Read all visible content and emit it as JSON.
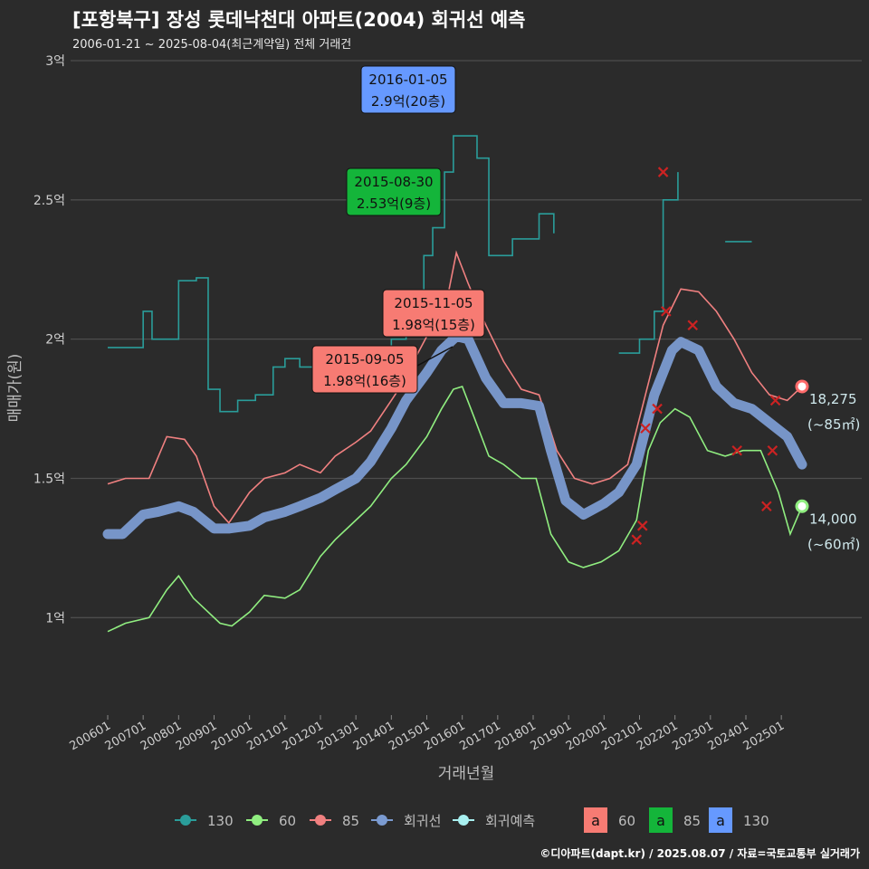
{
  "title": "[포항북구] 장성 롯데낙천대 아파트(2004) 회귀선 예측",
  "subtitle": "2006-01-21 ~ 2025-08-04(최근계약일) 전체 거래건",
  "footer": "©디아파트(dapt.kr) / 2025.08.07 / 자료=국토교통부 실거래가",
  "colors": {
    "background": "#2b2b2b",
    "grid": "#4d4d4d",
    "s130": "#2a9d9a",
    "s60": "#90ee80",
    "s85": "#f08080",
    "regression": "#7b9bd1",
    "forecast": "#a8f0f0",
    "box60": "#f77b73",
    "box85": "#14b53a",
    "box130": "#6699ff",
    "cancel": "#cc2222"
  },
  "chart_data": {
    "type": "line",
    "xlabel": "거래년월",
    "ylabel": "매매가(원)",
    "x_domain": [
      "2006-01",
      "2025-08"
    ],
    "ylim": [
      0.65,
      3.0
    ],
    "y_ticks": [
      {
        "value": 1.0,
        "label": "1억"
      },
      {
        "value": 1.5,
        "label": "1.5억"
      },
      {
        "value": 2.0,
        "label": "2억"
      },
      {
        "value": 2.5,
        "label": "2.5억"
      },
      {
        "value": 3.0,
        "label": "3억"
      }
    ],
    "x_ticks": [
      "200601",
      "200701",
      "200801",
      "200901",
      "201001",
      "201101",
      "201201",
      "201301",
      "201401",
      "201501",
      "201601",
      "201701",
      "201801",
      "201901",
      "202001",
      "202101",
      "202201",
      "202301",
      "202401",
      "202501"
    ],
    "series": [
      {
        "key": "s60",
        "name": "60",
        "style": "thin-line",
        "points": [
          [
            "2006-01",
            0.95
          ],
          [
            "2006-07",
            0.98
          ],
          [
            "2007-03",
            1.0
          ],
          [
            "2007-09",
            1.1
          ],
          [
            "2008-01",
            1.15
          ],
          [
            "2008-06",
            1.07
          ],
          [
            "2008-10",
            1.03
          ],
          [
            "2009-03",
            0.98
          ],
          [
            "2009-07",
            0.97
          ],
          [
            "2010-01",
            1.02
          ],
          [
            "2010-06",
            1.08
          ],
          [
            "2011-01",
            1.07
          ],
          [
            "2011-06",
            1.1
          ],
          [
            "2012-01",
            1.22
          ],
          [
            "2012-06",
            1.28
          ],
          [
            "2013-01",
            1.35
          ],
          [
            "2013-06",
            1.4
          ],
          [
            "2014-01",
            1.5
          ],
          [
            "2014-06",
            1.55
          ],
          [
            "2015-01",
            1.65
          ],
          [
            "2015-06",
            1.75
          ],
          [
            "2015-10",
            1.82
          ],
          [
            "2016-01",
            1.83
          ],
          [
            "2016-05",
            1.72
          ],
          [
            "2016-10",
            1.58
          ],
          [
            "2017-03",
            1.55
          ],
          [
            "2017-09",
            1.5
          ],
          [
            "2018-02",
            1.5
          ],
          [
            "2018-07",
            1.3
          ],
          [
            "2019-01",
            1.2
          ],
          [
            "2019-06",
            1.18
          ],
          [
            "2019-12",
            1.2
          ],
          [
            "2020-06",
            1.24
          ],
          [
            "2020-12",
            1.35
          ],
          [
            "2021-04",
            1.6
          ],
          [
            "2021-08",
            1.7
          ],
          [
            "2022-01",
            1.75
          ],
          [
            "2022-06",
            1.72
          ],
          [
            "2022-12",
            1.6
          ],
          [
            "2023-06",
            1.58
          ],
          [
            "2023-12",
            1.6
          ],
          [
            "2024-06",
            1.6
          ],
          [
            "2024-12",
            1.45
          ],
          [
            "2025-04",
            1.3
          ],
          [
            "2025-08",
            1.4
          ]
        ]
      },
      {
        "key": "s85",
        "name": "85",
        "style": "thin-line",
        "points": [
          [
            "2006-01",
            1.48
          ],
          [
            "2006-07",
            1.5
          ],
          [
            "2007-03",
            1.5
          ],
          [
            "2007-09",
            1.65
          ],
          [
            "2008-03",
            1.64
          ],
          [
            "2008-07",
            1.58
          ],
          [
            "2009-01",
            1.4
          ],
          [
            "2009-06",
            1.34
          ],
          [
            "2010-01",
            1.45
          ],
          [
            "2010-06",
            1.5
          ],
          [
            "2011-01",
            1.52
          ],
          [
            "2011-06",
            1.55
          ],
          [
            "2012-01",
            1.52
          ],
          [
            "2012-06",
            1.58
          ],
          [
            "2013-01",
            1.63
          ],
          [
            "2013-06",
            1.67
          ],
          [
            "2014-01",
            1.78
          ],
          [
            "2014-06",
            1.86
          ],
          [
            "2014-10",
            1.95
          ],
          [
            "2015-03",
            2.05
          ],
          [
            "2015-08",
            2.15
          ],
          [
            "2015-11",
            2.31
          ],
          [
            "2016-03",
            2.2
          ],
          [
            "2016-09",
            2.05
          ],
          [
            "2017-03",
            1.92
          ],
          [
            "2017-09",
            1.82
          ],
          [
            "2018-03",
            1.8
          ],
          [
            "2018-09",
            1.6
          ],
          [
            "2019-03",
            1.5
          ],
          [
            "2019-09",
            1.48
          ],
          [
            "2020-03",
            1.5
          ],
          [
            "2020-09",
            1.55
          ],
          [
            "2021-03",
            1.8
          ],
          [
            "2021-09",
            2.05
          ],
          [
            "2022-03",
            2.18
          ],
          [
            "2022-09",
            2.17
          ],
          [
            "2023-03",
            2.1
          ],
          [
            "2023-09",
            2.0
          ],
          [
            "2024-03",
            1.88
          ],
          [
            "2024-09",
            1.8
          ],
          [
            "2025-03",
            1.78
          ],
          [
            "2025-08",
            1.83
          ]
        ]
      },
      {
        "key": "s130",
        "name": "130",
        "style": "step-line",
        "points": [
          [
            "2006-01",
            1.97
          ],
          [
            "2006-08",
            1.97
          ],
          [
            "2007-01",
            2.1
          ],
          [
            "2007-04",
            2.0
          ],
          [
            "2007-09",
            2.0
          ],
          [
            "2008-01",
            2.21
          ],
          [
            "2008-07",
            2.22
          ],
          [
            "2008-11",
            1.82
          ],
          [
            "2009-03",
            1.74
          ],
          [
            "2009-09",
            1.78
          ],
          [
            "2010-03",
            1.8
          ],
          [
            "2010-09",
            1.9
          ],
          [
            "2011-01",
            1.93
          ],
          [
            "2011-06",
            1.9
          ],
          [
            "2012-01",
            1.95
          ],
          [
            "2012-09",
            1.92
          ],
          [
            "2013-06",
            1.95
          ],
          [
            "2014-01",
            2.0
          ],
          [
            "2014-06",
            2.1
          ],
          [
            "2014-12",
            2.3
          ],
          [
            "2015-03",
            2.4
          ],
          [
            "2015-07",
            2.6
          ],
          [
            "2015-10",
            2.73
          ],
          [
            "2016-02",
            2.73
          ],
          [
            "2016-06",
            2.65
          ],
          [
            "2016-10",
            2.3
          ],
          [
            "2017-06",
            2.36
          ],
          [
            "2017-10",
            2.36
          ],
          [
            "2018-03",
            2.45
          ],
          [
            "2018-08",
            2.38
          ]
        ]
      },
      {
        "key": "s130b",
        "name": "130",
        "style": "step-line",
        "points": [
          [
            "2020-06",
            1.95
          ],
          [
            "2020-10",
            1.95
          ],
          [
            "2021-01",
            2.0
          ],
          [
            "2021-06",
            2.1
          ],
          [
            "2021-09",
            2.5
          ],
          [
            "2022-02",
            2.6
          ]
        ]
      },
      {
        "key": "s130c",
        "name": "130",
        "style": "step-line",
        "points": [
          [
            "2023-06",
            2.35
          ],
          [
            "2023-12",
            2.35
          ],
          [
            "2024-03",
            2.35
          ]
        ]
      },
      {
        "key": "regression",
        "name": "회귀선",
        "style": "thick-line",
        "points": [
          [
            "2006-01",
            1.3
          ],
          [
            "2006-06",
            1.3
          ],
          [
            "2007-01",
            1.37
          ],
          [
            "2007-06",
            1.38
          ],
          [
            "2008-01",
            1.4
          ],
          [
            "2008-06",
            1.38
          ],
          [
            "2009-01",
            1.32
          ],
          [
            "2009-06",
            1.32
          ],
          [
            "2010-01",
            1.33
          ],
          [
            "2010-06",
            1.36
          ],
          [
            "2011-01",
            1.38
          ],
          [
            "2011-06",
            1.4
          ],
          [
            "2012-01",
            1.43
          ],
          [
            "2012-06",
            1.46
          ],
          [
            "2013-01",
            1.5
          ],
          [
            "2013-06",
            1.56
          ],
          [
            "2014-01",
            1.68
          ],
          [
            "2014-06",
            1.78
          ],
          [
            "2015-01",
            1.88
          ],
          [
            "2015-06",
            1.96
          ],
          [
            "2015-11",
            2.01
          ],
          [
            "2016-03",
            2.0
          ],
          [
            "2016-09",
            1.86
          ],
          [
            "2017-03",
            1.77
          ],
          [
            "2017-09",
            1.77
          ],
          [
            "2018-03",
            1.76
          ],
          [
            "2018-07",
            1.6
          ],
          [
            "2018-12",
            1.42
          ],
          [
            "2019-06",
            1.37
          ],
          [
            "2020-01",
            1.41
          ],
          [
            "2020-06",
            1.45
          ],
          [
            "2020-12",
            1.55
          ],
          [
            "2021-06",
            1.8
          ],
          [
            "2021-12",
            1.96
          ],
          [
            "2022-03",
            1.99
          ],
          [
            "2022-09",
            1.96
          ],
          [
            "2023-03",
            1.83
          ],
          [
            "2023-09",
            1.77
          ],
          [
            "2024-03",
            1.75
          ],
          [
            "2024-09",
            1.7
          ],
          [
            "2025-03",
            1.65
          ],
          [
            "2025-08",
            1.55
          ]
        ]
      }
    ],
    "end_markers": [
      {
        "key": "s85",
        "date": "2025-08",
        "value": 1.83,
        "label_top": "18,275",
        "label_bottom": "(~85㎡)"
      },
      {
        "key": "s60",
        "date": "2025-08",
        "value": 1.4,
        "label_top": "14,000",
        "label_bottom": "(~60㎡)"
      }
    ],
    "annotations": [
      {
        "key": "box130",
        "line1": "2016-01-05",
        "line2": "2.9억(20층)",
        "date": "2016-01",
        "value": 2.9
      },
      {
        "key": "box85",
        "line1": "2015-08-30",
        "line2": "2.53억(9층)",
        "date": "2015-08",
        "value": 2.53
      },
      {
        "key": "box60",
        "line1": "2015-11-05",
        "line2": "1.98억(15층)",
        "date": "2015-11",
        "value": 1.98
      },
      {
        "key": "box60",
        "line1": "2015-09-05",
        "line2": "1.98억(16층)",
        "date": "2015-09",
        "value": 1.98
      }
    ],
    "canceled_deals": [
      [
        "2021-07",
        1.75
      ],
      [
        "2021-03",
        1.68
      ],
      [
        "2021-02",
        1.33
      ],
      [
        "2020-12",
        1.28
      ],
      [
        "2022-07",
        2.05
      ],
      [
        "2021-09",
        2.6
      ],
      [
        "2024-08",
        1.4
      ],
      [
        "2024-10",
        1.6
      ],
      [
        "2024-11",
        1.78
      ],
      [
        "2023-10",
        1.6
      ],
      [
        "2021-10",
        2.1
      ]
    ],
    "legend": {
      "lines": [
        "130",
        "60",
        "85",
        "회귀선",
        "회귀예측"
      ],
      "boxes": [
        {
          "key": "box60",
          "letter": "a",
          "label": "60"
        },
        {
          "key": "box85",
          "letter": "a",
          "label": "85"
        },
        {
          "key": "box130",
          "letter": "a",
          "label": "130"
        }
      ]
    }
  }
}
